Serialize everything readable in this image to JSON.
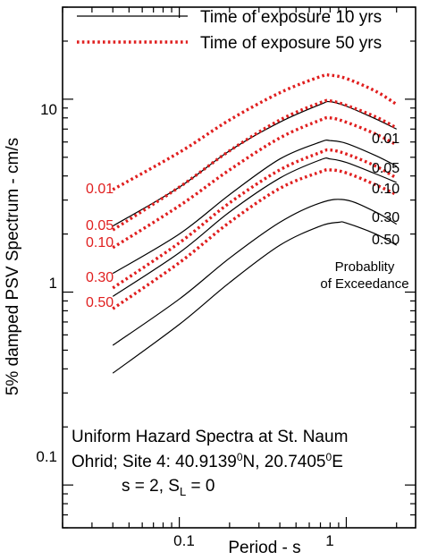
{
  "chart_data": {
    "type": "line",
    "xscale": "log",
    "yscale": "log",
    "xlim": [
      0.02,
      2.6
    ],
    "ylim": [
      0.06,
      30
    ],
    "xlabel": "Period - s",
    "ylabel": "5% damped PSV Spectrum - cm/s",
    "x_ticks": [
      {
        "value": 0.1,
        "label": "0.1"
      },
      {
        "value": 1,
        "label": "1"
      }
    ],
    "y_ticks": [
      {
        "value": 0.1,
        "label": "0.1"
      },
      {
        "value": 1,
        "label": "1"
      },
      {
        "value": 10,
        "label": "10"
      }
    ],
    "grid": false,
    "legend": {
      "placement": "top",
      "entries": [
        {
          "label": "Time of exposure 10 yrs",
          "style": "solid",
          "color": "#000000"
        },
        {
          "label": "Time of exposure 50 yrs",
          "style": "dotted",
          "color": "#e01f1f"
        }
      ]
    },
    "annotation": {
      "title_lines": [
        "Uniform Hazard Spectra at St. Naum",
        "Ohrid; Site 4: 40.9139",
        "N, 20.7405",
        "E"
      ],
      "degree_mark": "0",
      "params_prefix": "s = 2, S",
      "params_sub": "L",
      "params_suffix": " = 0"
    },
    "prob_title": [
      "Probablity",
      "of Exceedance"
    ],
    "black_labels": [
      "0.01",
      "0.05",
      "0.10",
      "0.30",
      "0.50"
    ],
    "red_labels": [
      "0.01",
      "0.05",
      "0.10",
      "0.30",
      "0.50"
    ],
    "series": [
      {
        "name": "0.01",
        "group": "10 yrs",
        "style": "solid",
        "color": "#000000",
        "points": [
          [
            0.04,
            2.2
          ],
          [
            0.1,
            3.5
          ],
          [
            0.2,
            5.4
          ],
          [
            0.4,
            7.6
          ],
          [
            0.7,
            9.4
          ],
          [
            0.8,
            9.7
          ],
          [
            1.0,
            9.2
          ],
          [
            1.5,
            7.9
          ],
          [
            2.0,
            7.0
          ]
        ]
      },
      {
        "name": "0.05",
        "group": "10 yrs",
        "style": "solid",
        "color": "#000000",
        "points": [
          [
            0.04,
            1.25
          ],
          [
            0.1,
            2.0
          ],
          [
            0.2,
            3.2
          ],
          [
            0.4,
            4.9
          ],
          [
            0.7,
            6.0
          ],
          [
            0.8,
            6.1
          ],
          [
            1.0,
            5.9
          ],
          [
            1.5,
            5.1
          ],
          [
            2.0,
            4.5
          ]
        ]
      },
      {
        "name": "0.10",
        "group": "10 yrs",
        "style": "solid",
        "color": "#000000",
        "points": [
          [
            0.04,
            0.95
          ],
          [
            0.1,
            1.6
          ],
          [
            0.2,
            2.6
          ],
          [
            0.4,
            3.9
          ],
          [
            0.7,
            4.85
          ],
          [
            0.8,
            4.9
          ],
          [
            1.0,
            4.7
          ],
          [
            1.5,
            4.1
          ],
          [
            2.0,
            3.7
          ]
        ]
      },
      {
        "name": "0.30",
        "group": "10 yrs",
        "style": "solid",
        "color": "#000000",
        "points": [
          [
            0.04,
            0.53
          ],
          [
            0.1,
            0.92
          ],
          [
            0.2,
            1.5
          ],
          [
            0.4,
            2.3
          ],
          [
            0.7,
            2.9
          ],
          [
            1.0,
            3.0
          ],
          [
            1.5,
            2.6
          ],
          [
            2.0,
            2.25
          ]
        ]
      },
      {
        "name": "0.50",
        "group": "10 yrs",
        "style": "solid",
        "color": "#000000",
        "points": [
          [
            0.04,
            0.38
          ],
          [
            0.1,
            0.68
          ],
          [
            0.2,
            1.12
          ],
          [
            0.4,
            1.75
          ],
          [
            0.7,
            2.2
          ],
          [
            0.9,
            2.3
          ],
          [
            1.0,
            2.28
          ],
          [
            1.5,
            2.0
          ],
          [
            2.0,
            1.75
          ]
        ]
      },
      {
        "name": "0.01",
        "group": "50 yrs",
        "style": "dotted",
        "color": "#e01f1f",
        "points": [
          [
            0.04,
            3.4
          ],
          [
            0.1,
            5.3
          ],
          [
            0.2,
            7.8
          ],
          [
            0.4,
            10.8
          ],
          [
            0.7,
            13.1
          ],
          [
            0.8,
            13.3
          ],
          [
            1.0,
            12.8
          ],
          [
            1.5,
            11.0
          ],
          [
            2.0,
            9.4
          ]
        ]
      },
      {
        "name": "0.05",
        "group": "50 yrs",
        "style": "dotted",
        "color": "#e01f1f",
        "points": [
          [
            0.04,
            2.1
          ],
          [
            0.1,
            3.5
          ],
          [
            0.2,
            5.4
          ],
          [
            0.4,
            7.8
          ],
          [
            0.7,
            9.6
          ],
          [
            0.8,
            9.8
          ],
          [
            1.0,
            9.3
          ],
          [
            1.5,
            8.1
          ],
          [
            2.0,
            7.1
          ]
        ]
      },
      {
        "name": "0.10",
        "group": "50 yrs",
        "style": "dotted",
        "color": "#e01f1f",
        "points": [
          [
            0.04,
            1.7
          ],
          [
            0.1,
            2.8
          ],
          [
            0.2,
            4.3
          ],
          [
            0.4,
            6.3
          ],
          [
            0.7,
            7.8
          ],
          [
            0.8,
            8.0
          ],
          [
            1.0,
            7.6
          ],
          [
            1.5,
            6.6
          ],
          [
            2.0,
            5.8
          ]
        ]
      },
      {
        "name": "0.30",
        "group": "50 yrs",
        "style": "dotted",
        "color": "#e01f1f",
        "points": [
          [
            0.04,
            1.05
          ],
          [
            0.1,
            1.8
          ],
          [
            0.2,
            2.9
          ],
          [
            0.4,
            4.3
          ],
          [
            0.7,
            5.3
          ],
          [
            0.8,
            5.45
          ],
          [
            1.0,
            5.2
          ],
          [
            1.5,
            4.5
          ],
          [
            2.0,
            3.9
          ]
        ]
      },
      {
        "name": "0.50",
        "group": "50 yrs",
        "style": "dotted",
        "color": "#e01f1f",
        "points": [
          [
            0.04,
            0.82
          ],
          [
            0.1,
            1.42
          ],
          [
            0.2,
            2.3
          ],
          [
            0.4,
            3.45
          ],
          [
            0.7,
            4.2
          ],
          [
            0.8,
            4.3
          ],
          [
            1.0,
            4.15
          ],
          [
            1.5,
            3.6
          ],
          [
            2.0,
            3.2
          ]
        ]
      }
    ]
  }
}
